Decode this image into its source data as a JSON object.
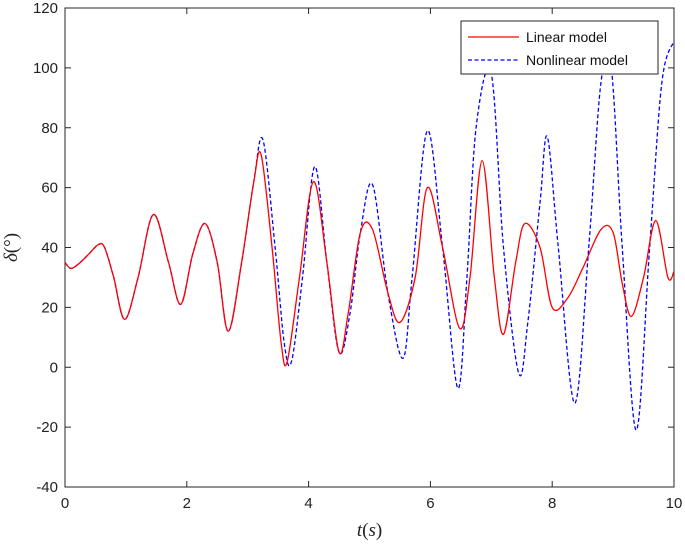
{
  "chart_data": {
    "type": "line",
    "xlabel": "t(s)",
    "xlabel_parts": {
      "var": "t",
      "open": "(",
      "unit": "s",
      "close": ")"
    },
    "ylabel": "δ(°)",
    "ylabel_parts": {
      "var": "δ",
      "rest": "(°)"
    },
    "xlim": [
      0,
      10
    ],
    "ylim": [
      -40,
      120
    ],
    "xticks": [
      0,
      2,
      4,
      6,
      8,
      10
    ],
    "xtick_labels": [
      "0",
      "2",
      "4",
      "6",
      "8",
      "10"
    ],
    "yticks": [
      -40,
      -20,
      0,
      20,
      40,
      60,
      80,
      100,
      120
    ],
    "ytick_labels": [
      "-40",
      "-20",
      "0",
      "20",
      "40",
      "60",
      "80",
      "100",
      "120"
    ],
    "grid": false,
    "legend_position": "top-right",
    "series": [
      {
        "name": "Linear model",
        "color": "#ff0000",
        "style": "solid",
        "x": [
          0,
          0.1,
          0.25,
          0.4,
          0.55,
          0.65,
          0.8,
          0.98,
          1.2,
          1.45,
          1.7,
          1.9,
          2.1,
          2.3,
          2.5,
          2.68,
          2.9,
          3.1,
          3.22,
          3.4,
          3.55,
          3.65,
          3.85,
          4.08,
          4.3,
          4.5,
          4.65,
          4.85,
          5.05,
          5.3,
          5.5,
          5.75,
          5.95,
          6.2,
          6.48,
          6.65,
          6.85,
          7.05,
          7.2,
          7.4,
          7.55,
          7.8,
          8.0,
          8.25,
          8.5,
          8.8,
          9.0,
          9.15,
          9.3,
          9.5,
          9.7,
          9.9,
          10.0
        ],
        "y": [
          35,
          33,
          35,
          38,
          41,
          40,
          30,
          16,
          30,
          51,
          35,
          21,
          38,
          48,
          35,
          12,
          35,
          62,
          71,
          40,
          8,
          2,
          30,
          62,
          35,
          5,
          18,
          45,
          46,
          25,
          15,
          30,
          60,
          40,
          13,
          30,
          69,
          30,
          11,
          35,
          48,
          40,
          20,
          23,
          33,
          46,
          45,
          28,
          17,
          30,
          49,
          30,
          32
        ]
      },
      {
        "name": "Nonlinear model",
        "color": "#0000ff",
        "style": "dashed",
        "x": [
          0,
          0.1,
          0.25,
          0.4,
          0.55,
          0.65,
          0.8,
          0.98,
          1.2,
          1.45,
          1.7,
          1.9,
          2.1,
          2.3,
          2.5,
          2.68,
          2.9,
          3.1,
          3.25,
          3.45,
          3.6,
          3.72,
          3.9,
          4.1,
          4.3,
          4.5,
          4.68,
          4.85,
          5.05,
          5.3,
          5.55,
          5.7,
          5.95,
          6.2,
          6.45,
          6.6,
          6.75,
          7.0,
          7.2,
          7.45,
          7.6,
          7.8,
          7.92,
          8.1,
          8.37,
          8.6,
          8.8,
          8.97,
          9.15,
          9.38,
          9.6,
          9.8,
          10.0
        ],
        "y": [
          35,
          33,
          35,
          38,
          41,
          40,
          30,
          16,
          30,
          51,
          35,
          21,
          38,
          48,
          35,
          12,
          35,
          62,
          76,
          40,
          8,
          2,
          30,
          67,
          35,
          5,
          18,
          45,
          61,
          25,
          3,
          30,
          79,
          40,
          -7,
          30,
          80,
          98,
          40,
          -2,
          15,
          55,
          77,
          40,
          -12,
          40,
          95,
          100,
          40,
          -21,
          40,
          95,
          109
        ]
      }
    ]
  }
}
